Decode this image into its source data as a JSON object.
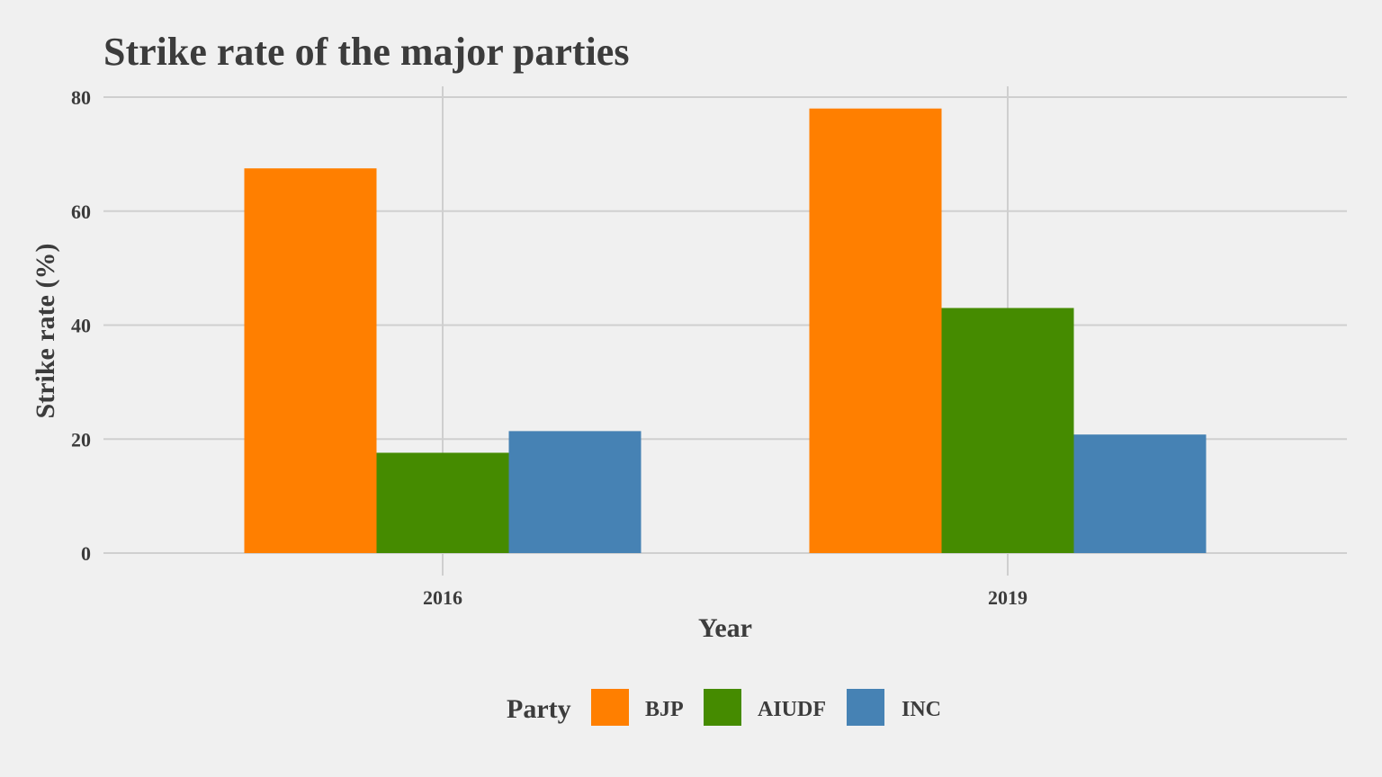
{
  "chart_data": {
    "type": "bar",
    "title": "Strike rate of the major parties",
    "xlabel": "Year",
    "ylabel": "Strike rate (%)",
    "categories": [
      "2016",
      "2019"
    ],
    "series": [
      {
        "name": "BJP",
        "color": "#ff7f00",
        "values": [
          67.5,
          78.0
        ]
      },
      {
        "name": "AIUDF",
        "color": "#458b00",
        "values": [
          17.6,
          43.0
        ]
      },
      {
        "name": "INC",
        "color": "#4682b4",
        "values": [
          21.4,
          20.8
        ]
      }
    ],
    "ylim": [
      0,
      80
    ],
    "yticks": [
      "0",
      "20",
      "40",
      "60",
      "80"
    ],
    "grid": true,
    "legend": {
      "title": "Party",
      "position": "bottom",
      "entries": [
        "BJP",
        "AIUDF",
        "INC"
      ]
    }
  }
}
